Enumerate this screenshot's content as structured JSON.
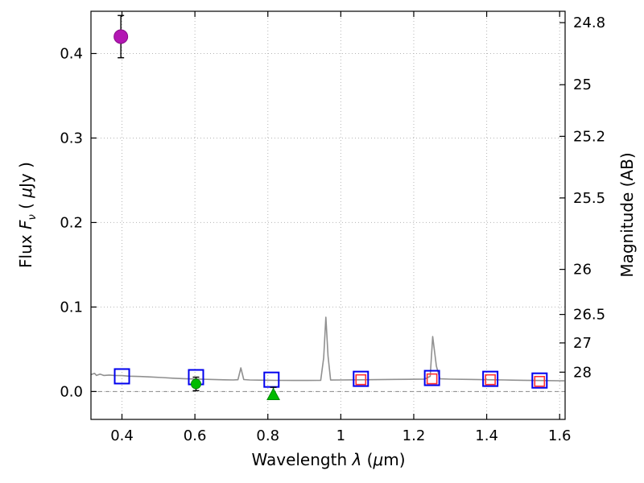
{
  "labels": {
    "x": {
      "pre": "Wavelength  ",
      "lambda": "λ",
      "open": " (",
      "mu": "μ",
      "close": "m)"
    },
    "y_left": {
      "pre": "Flux  ",
      "f": "F",
      "nu": "ν",
      "open": "  ( ",
      "mu": "μ",
      "close": "Jy )"
    },
    "y_right": "Magnitude (AB)"
  },
  "chart_data": {
    "type": "line+scatter",
    "title": "",
    "xlabel": "Wavelength λ (μm)",
    "ylabel": "Flux Fν (μJy)",
    "ylabel_right": "Magnitude (AB)",
    "xlim": [
      0.315,
      1.615
    ],
    "ylim": [
      -0.033,
      0.45
    ],
    "x_ticks": [
      0.4,
      0.6,
      0.8,
      1.0,
      1.2,
      1.4,
      1.6
    ],
    "x_tick_labels": [
      "0.4",
      "0.6",
      "0.8",
      "1",
      "1.2",
      "1.4",
      "1.6"
    ],
    "y_ticks": [
      0.0,
      0.1,
      0.2,
      0.3,
      0.4
    ],
    "y_tick_labels": [
      "0.0",
      "0.1",
      "0.2",
      "0.3",
      "0.4"
    ],
    "right_axis_ticks": [
      {
        "label": "24.8",
        "flux": 0.43652
      },
      {
        "label": "25",
        "flux": 0.36308
      },
      {
        "label": "25.2",
        "flux": 0.302
      },
      {
        "label": "25.5",
        "flux": 0.22909
      },
      {
        "label": "26",
        "flux": 0.14454
      },
      {
        "label": "26.5",
        "flux": 0.0912
      },
      {
        "label": "27",
        "flux": 0.05754
      },
      {
        "label": "28",
        "flux": 0.02291
      }
    ],
    "grid": true,
    "zero_line": true,
    "colors": {
      "spectrum": "#909090",
      "grid": "#b5b5b5",
      "zero": "#8a8a8a",
      "frame": "#000000",
      "text": "#000000",
      "error": "#000000"
    },
    "spectrum": [
      [
        0.315,
        0.02
      ],
      [
        0.325,
        0.0215
      ],
      [
        0.33,
        0.019
      ],
      [
        0.34,
        0.0205
      ],
      [
        0.35,
        0.019
      ],
      [
        0.365,
        0.0195
      ],
      [
        0.38,
        0.019
      ],
      [
        0.4,
        0.0188
      ],
      [
        0.42,
        0.0182
      ],
      [
        0.45,
        0.0178
      ],
      [
        0.48,
        0.0172
      ],
      [
        0.51,
        0.0165
      ],
      [
        0.54,
        0.0158
      ],
      [
        0.57,
        0.0152
      ],
      [
        0.6,
        0.0148
      ],
      [
        0.64,
        0.0143
      ],
      [
        0.68,
        0.0139
      ],
      [
        0.705,
        0.0137
      ],
      [
        0.718,
        0.014
      ],
      [
        0.726,
        0.028
      ],
      [
        0.734,
        0.0142
      ],
      [
        0.75,
        0.0137
      ],
      [
        0.79,
        0.0134
      ],
      [
        0.83,
        0.0132
      ],
      [
        0.87,
        0.0131
      ],
      [
        0.91,
        0.0131
      ],
      [
        0.945,
        0.0132
      ],
      [
        0.953,
        0.04
      ],
      [
        0.959,
        0.088
      ],
      [
        0.965,
        0.042
      ],
      [
        0.972,
        0.0136
      ],
      [
        1.0,
        0.0137
      ],
      [
        1.05,
        0.0139
      ],
      [
        1.1,
        0.0141
      ],
      [
        1.15,
        0.0143
      ],
      [
        1.2,
        0.0145
      ],
      [
        1.23,
        0.0147
      ],
      [
        1.245,
        0.018
      ],
      [
        1.252,
        0.065
      ],
      [
        1.262,
        0.03
      ],
      [
        1.272,
        0.015
      ],
      [
        1.3,
        0.0146
      ],
      [
        1.35,
        0.0143
      ],
      [
        1.4,
        0.014
      ],
      [
        1.45,
        0.0137
      ],
      [
        1.5,
        0.0133
      ],
      [
        1.55,
        0.013
      ],
      [
        1.6,
        0.0127
      ],
      [
        1.613,
        0.0126
      ]
    ],
    "points": [
      {
        "name": "magenta-photometry-point",
        "marker": "circle",
        "size": 8.5,
        "fill": "#b317b3",
        "stroke": "#8a0d8a",
        "x": [
          0.397
        ],
        "y": [
          0.42
        ],
        "yerr": [
          0.025
        ]
      },
      {
        "name": "blue-open-square",
        "marker": "square-open",
        "size": 18,
        "stroke": "#0000ee",
        "stroke_width": 2,
        "x": [
          0.4,
          0.603,
          0.81,
          1.055,
          1.25,
          1.41,
          1.545
        ],
        "y": [
          0.018,
          0.017,
          0.014,
          0.015,
          0.016,
          0.015,
          0.013
        ]
      },
      {
        "name": "red-open-square",
        "marker": "square-open",
        "size": 12,
        "stroke": "#ff3030",
        "stroke_width": 1.6,
        "x": [
          1.055,
          1.25,
          1.41,
          1.545
        ],
        "y": [
          0.014,
          0.015,
          0.014,
          0.012
        ]
      },
      {
        "name": "green-photometry-point",
        "marker": "circle",
        "size": 6,
        "fill": "#00bb00",
        "stroke": "#008800",
        "x": [
          0.603
        ],
        "y": [
          0.009
        ],
        "yerr": [
          0.008
        ]
      },
      {
        "name": "green-upper-limit-triangle",
        "marker": "triangle-up",
        "size": 8,
        "fill": "#00bb00",
        "stroke": "#008800",
        "x": [
          0.815
        ],
        "y": [
          -0.004
        ],
        "yerr_up": [
          0.009
        ]
      }
    ]
  }
}
